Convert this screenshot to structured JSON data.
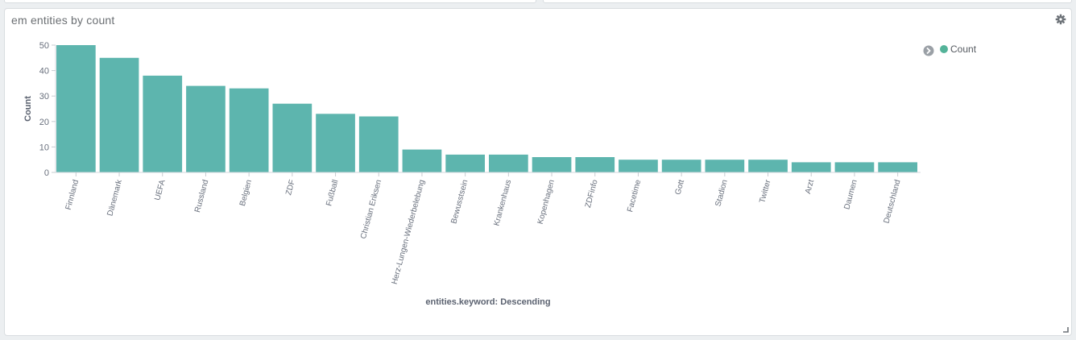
{
  "panel": {
    "title": "em entities by count"
  },
  "legend": {
    "placement": "top-right",
    "toggle_icon": "chevron-right-icon",
    "items": [
      {
        "label": "Count",
        "color": "#54b399"
      }
    ]
  },
  "icons": {
    "settings": "gear-icon",
    "resize": "resize-handle-icon"
  },
  "chart_data": {
    "type": "bar",
    "title": "em entities by count",
    "xlabel": "entities.keyword: Descending",
    "ylabel": "Count",
    "ylim": [
      0,
      50
    ],
    "yticks": [
      0,
      10,
      20,
      30,
      40,
      50
    ],
    "grid": false,
    "bar_color": "#5db5ae",
    "categories": [
      "Finnland",
      "Dänemark",
      "UEFA",
      "Russland",
      "Belgien",
      "ZDF",
      "Fußball",
      "Christian Eriksen",
      "Herz-Lungen-Wiederbelebung",
      "Bewusstsein",
      "Krankenhaus",
      "Kopenhagen",
      "ZDFinfo",
      "Facetime",
      "Gott",
      "Stadion",
      "Twitter",
      "Arzt",
      "Daumen",
      "Deutschland"
    ],
    "series": [
      {
        "name": "Count",
        "values": [
          50,
          45,
          38,
          34,
          33,
          27,
          23,
          22,
          9,
          7,
          7,
          6,
          6,
          5,
          5,
          5,
          5,
          4,
          4,
          4
        ]
      }
    ]
  }
}
